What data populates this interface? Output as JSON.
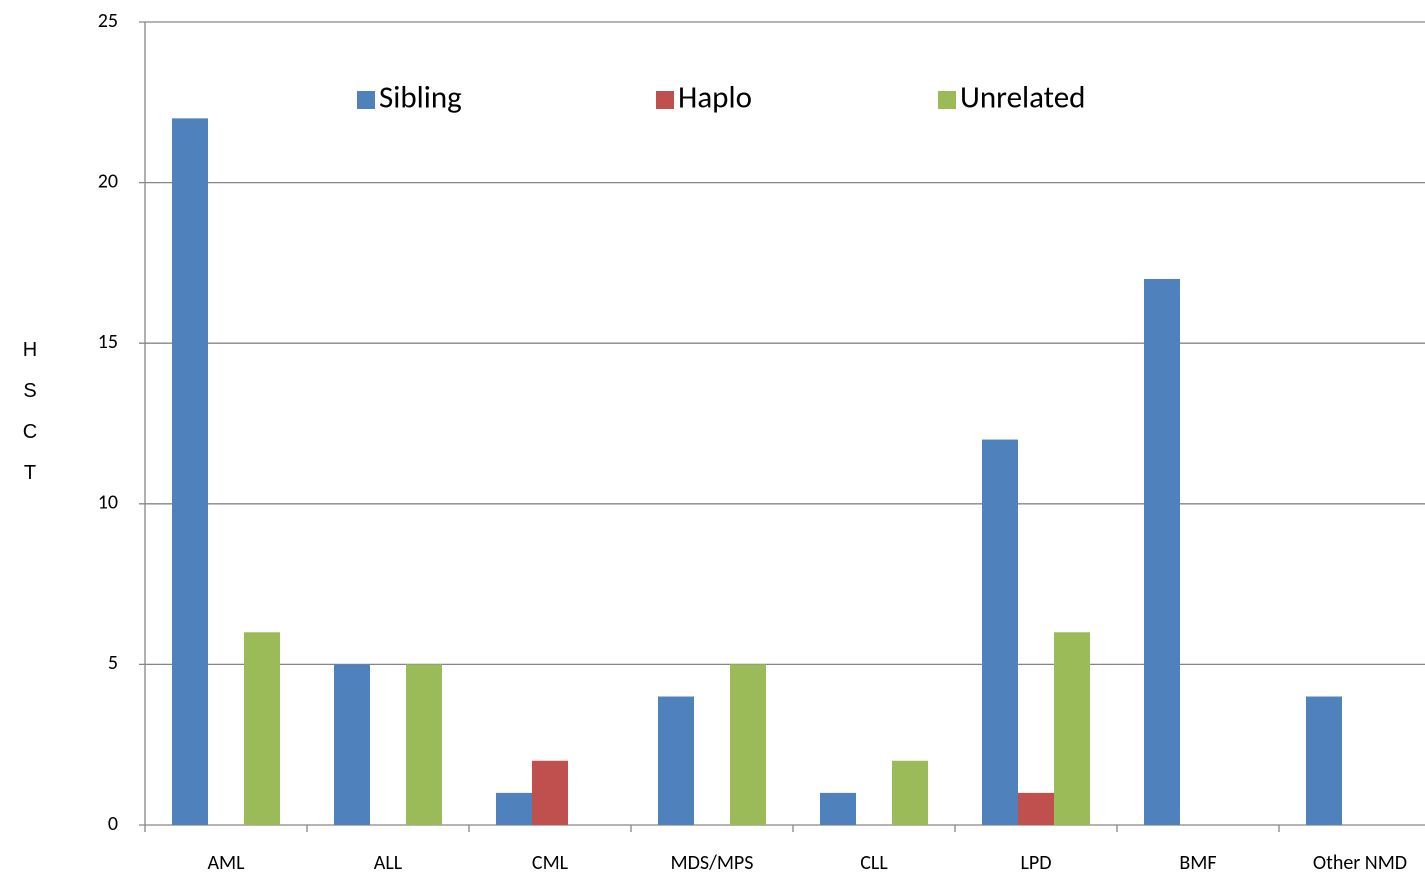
{
  "chart_data": {
    "type": "bar",
    "ylabel": "HSCT",
    "categories": [
      "AML",
      "ALL",
      "CML",
      "MDS/MPS",
      "CLL",
      "LPD",
      "BMF",
      "Other NMD"
    ],
    "series": [
      {
        "name": "Sibling",
        "color": "#4f81bd",
        "values": [
          22,
          5,
          1,
          4,
          1,
          12,
          17,
          4
        ]
      },
      {
        "name": "Haplo",
        "color": "#c0504d",
        "values": [
          0,
          0,
          2,
          0,
          0,
          1,
          0,
          0
        ]
      },
      {
        "name": "Unrelated",
        "color": "#9bbb59",
        "values": [
          6,
          5,
          0,
          5,
          2,
          6,
          0,
          0
        ]
      }
    ],
    "ylim": [
      0,
      25
    ],
    "yticks": [
      0,
      5,
      10,
      15,
      20,
      25
    ],
    "grid": true,
    "legend": "top"
  }
}
